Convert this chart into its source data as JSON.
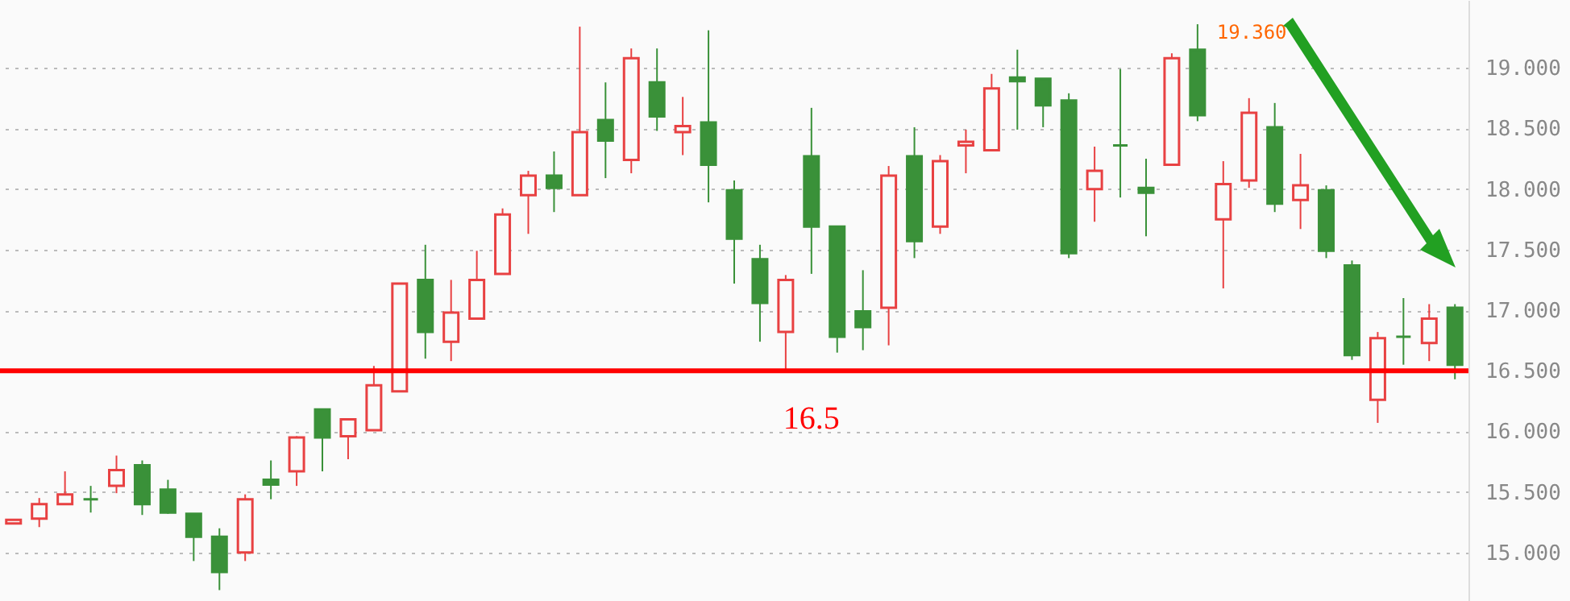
{
  "chart_data": {
    "type": "candlestick",
    "categories": [
      null,
      null,
      null,
      null,
      null,
      null,
      null,
      null,
      null,
      null,
      null,
      null,
      null,
      null,
      null,
      null,
      null,
      null,
      null,
      null,
      null,
      null,
      null,
      null,
      null,
      null,
      null,
      null,
      null,
      null,
      null,
      null,
      null,
      null,
      null,
      null,
      null,
      null,
      null,
      null,
      null,
      null,
      null,
      null,
      null,
      null,
      null,
      null,
      null,
      null,
      null,
      null,
      null,
      null,
      null,
      null,
      null
    ],
    "ohlc": [
      [
        15.24,
        15.27,
        15.24,
        15.27
      ],
      [
        15.28,
        15.45,
        15.21,
        15.4
      ],
      [
        15.4,
        15.67,
        15.4,
        15.48
      ],
      [
        15.44,
        15.55,
        15.33,
        15.44
      ],
      [
        15.55,
        15.8,
        15.49,
        15.68
      ],
      [
        15.72,
        15.76,
        15.31,
        15.4
      ],
      [
        15.52,
        15.6,
        15.32,
        15.33
      ],
      [
        15.32,
        15.32,
        14.93,
        15.13
      ],
      [
        15.13,
        15.2,
        14.69,
        14.84
      ],
      [
        15.0,
        15.48,
        14.93,
        15.44
      ],
      [
        15.6,
        15.76,
        15.44,
        15.56
      ],
      [
        15.67,
        15.96,
        15.55,
        15.95
      ],
      [
        16.18,
        16.18,
        15.67,
        15.95
      ],
      [
        15.96,
        16.1,
        15.77,
        16.1
      ],
      [
        16.01,
        16.54,
        16.01,
        16.38
      ],
      [
        16.33,
        17.22,
        16.33,
        17.22
      ],
      [
        17.25,
        17.54,
        16.6,
        16.82
      ],
      [
        16.74,
        17.25,
        16.58,
        16.98
      ],
      [
        16.93,
        17.49,
        16.93,
        17.25
      ],
      [
        17.3,
        17.84,
        17.3,
        17.79
      ],
      [
        17.95,
        18.15,
        17.63,
        18.11
      ],
      [
        18.11,
        18.31,
        17.81,
        18.01
      ],
      [
        17.95,
        19.34,
        17.95,
        18.47
      ],
      [
        18.57,
        18.88,
        18.09,
        18.4
      ],
      [
        18.24,
        19.16,
        18.13,
        19.08
      ],
      [
        18.88,
        19.16,
        18.48,
        18.6
      ],
      [
        18.47,
        18.76,
        18.28,
        18.52
      ],
      [
        18.55,
        19.31,
        17.89,
        18.2
      ],
      [
        17.99,
        18.07,
        17.22,
        17.59
      ],
      [
        17.42,
        17.54,
        16.74,
        17.06
      ],
      [
        16.82,
        17.29,
        16.51,
        17.25
      ],
      [
        18.27,
        18.67,
        17.3,
        17.69
      ],
      [
        17.69,
        17.69,
        16.65,
        16.78
      ],
      [
        16.99,
        17.33,
        16.67,
        16.86
      ],
      [
        17.02,
        18.19,
        16.71,
        18.11
      ],
      [
        18.27,
        18.51,
        17.43,
        17.57
      ],
      [
        17.69,
        18.28,
        17.63,
        18.23
      ],
      [
        18.36,
        18.49,
        18.13,
        18.39
      ],
      [
        18.32,
        18.95,
        18.32,
        18.83
      ],
      [
        18.92,
        19.15,
        18.49,
        18.89
      ],
      [
        18.91,
        18.91,
        18.51,
        18.69
      ],
      [
        18.73,
        18.79,
        17.43,
        17.47
      ],
      [
        18.0,
        18.35,
        17.73,
        18.15
      ],
      [
        18.36,
        18.99,
        17.93,
        18.36
      ],
      [
        18.01,
        18.25,
        17.61,
        17.97
      ],
      [
        18.2,
        19.12,
        18.2,
        19.08
      ],
      [
        19.15,
        19.36,
        18.56,
        18.61
      ],
      [
        17.75,
        18.23,
        17.18,
        18.04
      ],
      [
        18.07,
        18.75,
        18.01,
        18.63
      ],
      [
        18.51,
        18.71,
        17.81,
        17.88
      ],
      [
        17.91,
        18.29,
        17.67,
        18.03
      ],
      [
        17.99,
        18.03,
        17.43,
        17.49
      ],
      [
        17.37,
        17.41,
        16.59,
        16.63
      ],
      [
        16.26,
        16.82,
        16.07,
        16.77
      ],
      [
        16.78,
        17.1,
        16.55,
        16.78
      ],
      [
        16.73,
        17.05,
        16.58,
        16.93
      ],
      [
        17.02,
        17.05,
        16.43,
        16.55
      ]
    ],
    "colors": [
      "#e84142",
      "#e84142",
      "#e84142",
      "#3a9139",
      "#e84142",
      "#3a9139",
      "#3a9139",
      "#3a9139",
      "#3a9139",
      "#e84142",
      "#3a9139",
      "#e84142",
      "#3a9139",
      "#e84142",
      "#e84142",
      "#e84142",
      "#3a9139",
      "#e84142",
      "#e84142",
      "#e84142",
      "#e84142",
      "#3a9139",
      "#e84142",
      "#3a9139",
      "#e84142",
      "#3a9139",
      "#e84142",
      "#3a9139",
      "#3a9139",
      "#3a9139",
      "#e84142",
      "#3a9139",
      "#3a9139",
      "#3a9139",
      "#e84142",
      "#3a9139",
      "#e84142",
      "#e84142",
      "#e84142",
      "#3a9139",
      "#3a9139",
      "#3a9139",
      "#e84142",
      "#3a9139",
      "#3a9139",
      "#e84142",
      "#3a9139",
      "#e84142",
      "#e84142",
      "#3a9139",
      "#e84142",
      "#3a9139",
      "#3a9139",
      "#e84142",
      "#3a9139",
      "#e84142",
      "#3a9139"
    ],
    "ylim": [
      14.6,
      19.56
    ],
    "yticks": [
      {
        "value": 15,
        "label": "15.000"
      },
      {
        "value": 15.5,
        "label": "15.500"
      },
      {
        "value": 16,
        "label": "16.000"
      },
      {
        "value": 16.5,
        "label": "16.500"
      },
      {
        "value": 17,
        "label": "17.000"
      },
      {
        "value": 17.5,
        "label": "17.500"
      },
      {
        "value": 18,
        "label": "18.000"
      },
      {
        "value": 18.5,
        "label": "18.500"
      },
      {
        "value": 19,
        "label": "19.000"
      }
    ],
    "grid": "y",
    "tick_labels": "y",
    "ref_lines": [
      {
        "axis": "y",
        "value": 16.5,
        "label": "16.5",
        "color": "#ff0000"
      }
    ],
    "annotations": [
      "19.360"
    ]
  }
}
